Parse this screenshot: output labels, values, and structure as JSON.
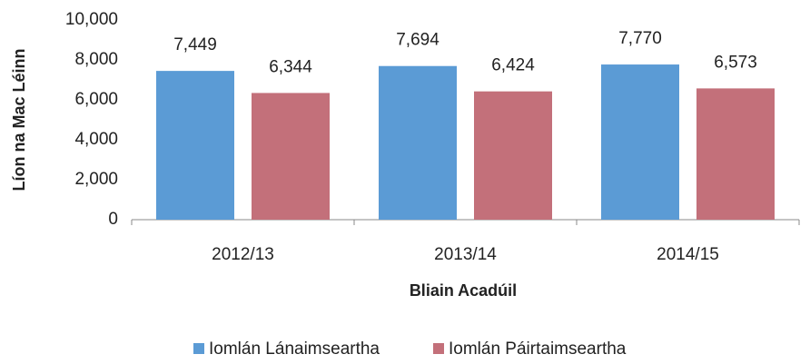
{
  "chart_data": {
    "type": "bar",
    "y_label": "Líon na Mac Léinn",
    "x_label": "Bliain Acadúil",
    "categories": [
      "2012/13",
      "2013/14",
      "2014/15"
    ],
    "series": [
      {
        "name": "Iomlán Lánaimseartha",
        "color": "#5b9bd5",
        "values": [
          7449,
          7694,
          7770
        ],
        "value_labels": [
          "7,449",
          "7,694",
          "7,770"
        ]
      },
      {
        "name": "Iomlán Páirtaimseartha",
        "color": "#c3707a",
        "values": [
          6344,
          6424,
          6573
        ],
        "value_labels": [
          "6,344",
          "6,424",
          "6,573"
        ]
      }
    ],
    "ylim": [
      0,
      10000
    ],
    "yticks": [
      0,
      {
        "value": 2000,
        "label": "2,000"
      },
      {
        "value": 4000,
        "label": "4,000"
      },
      {
        "value": 6000,
        "label": "6,000"
      },
      {
        "value": 8000,
        "label": "8,000"
      },
      {
        "value": 10000,
        "label": "10,000"
      }
    ],
    "grid": false,
    "legend": "bottom"
  }
}
